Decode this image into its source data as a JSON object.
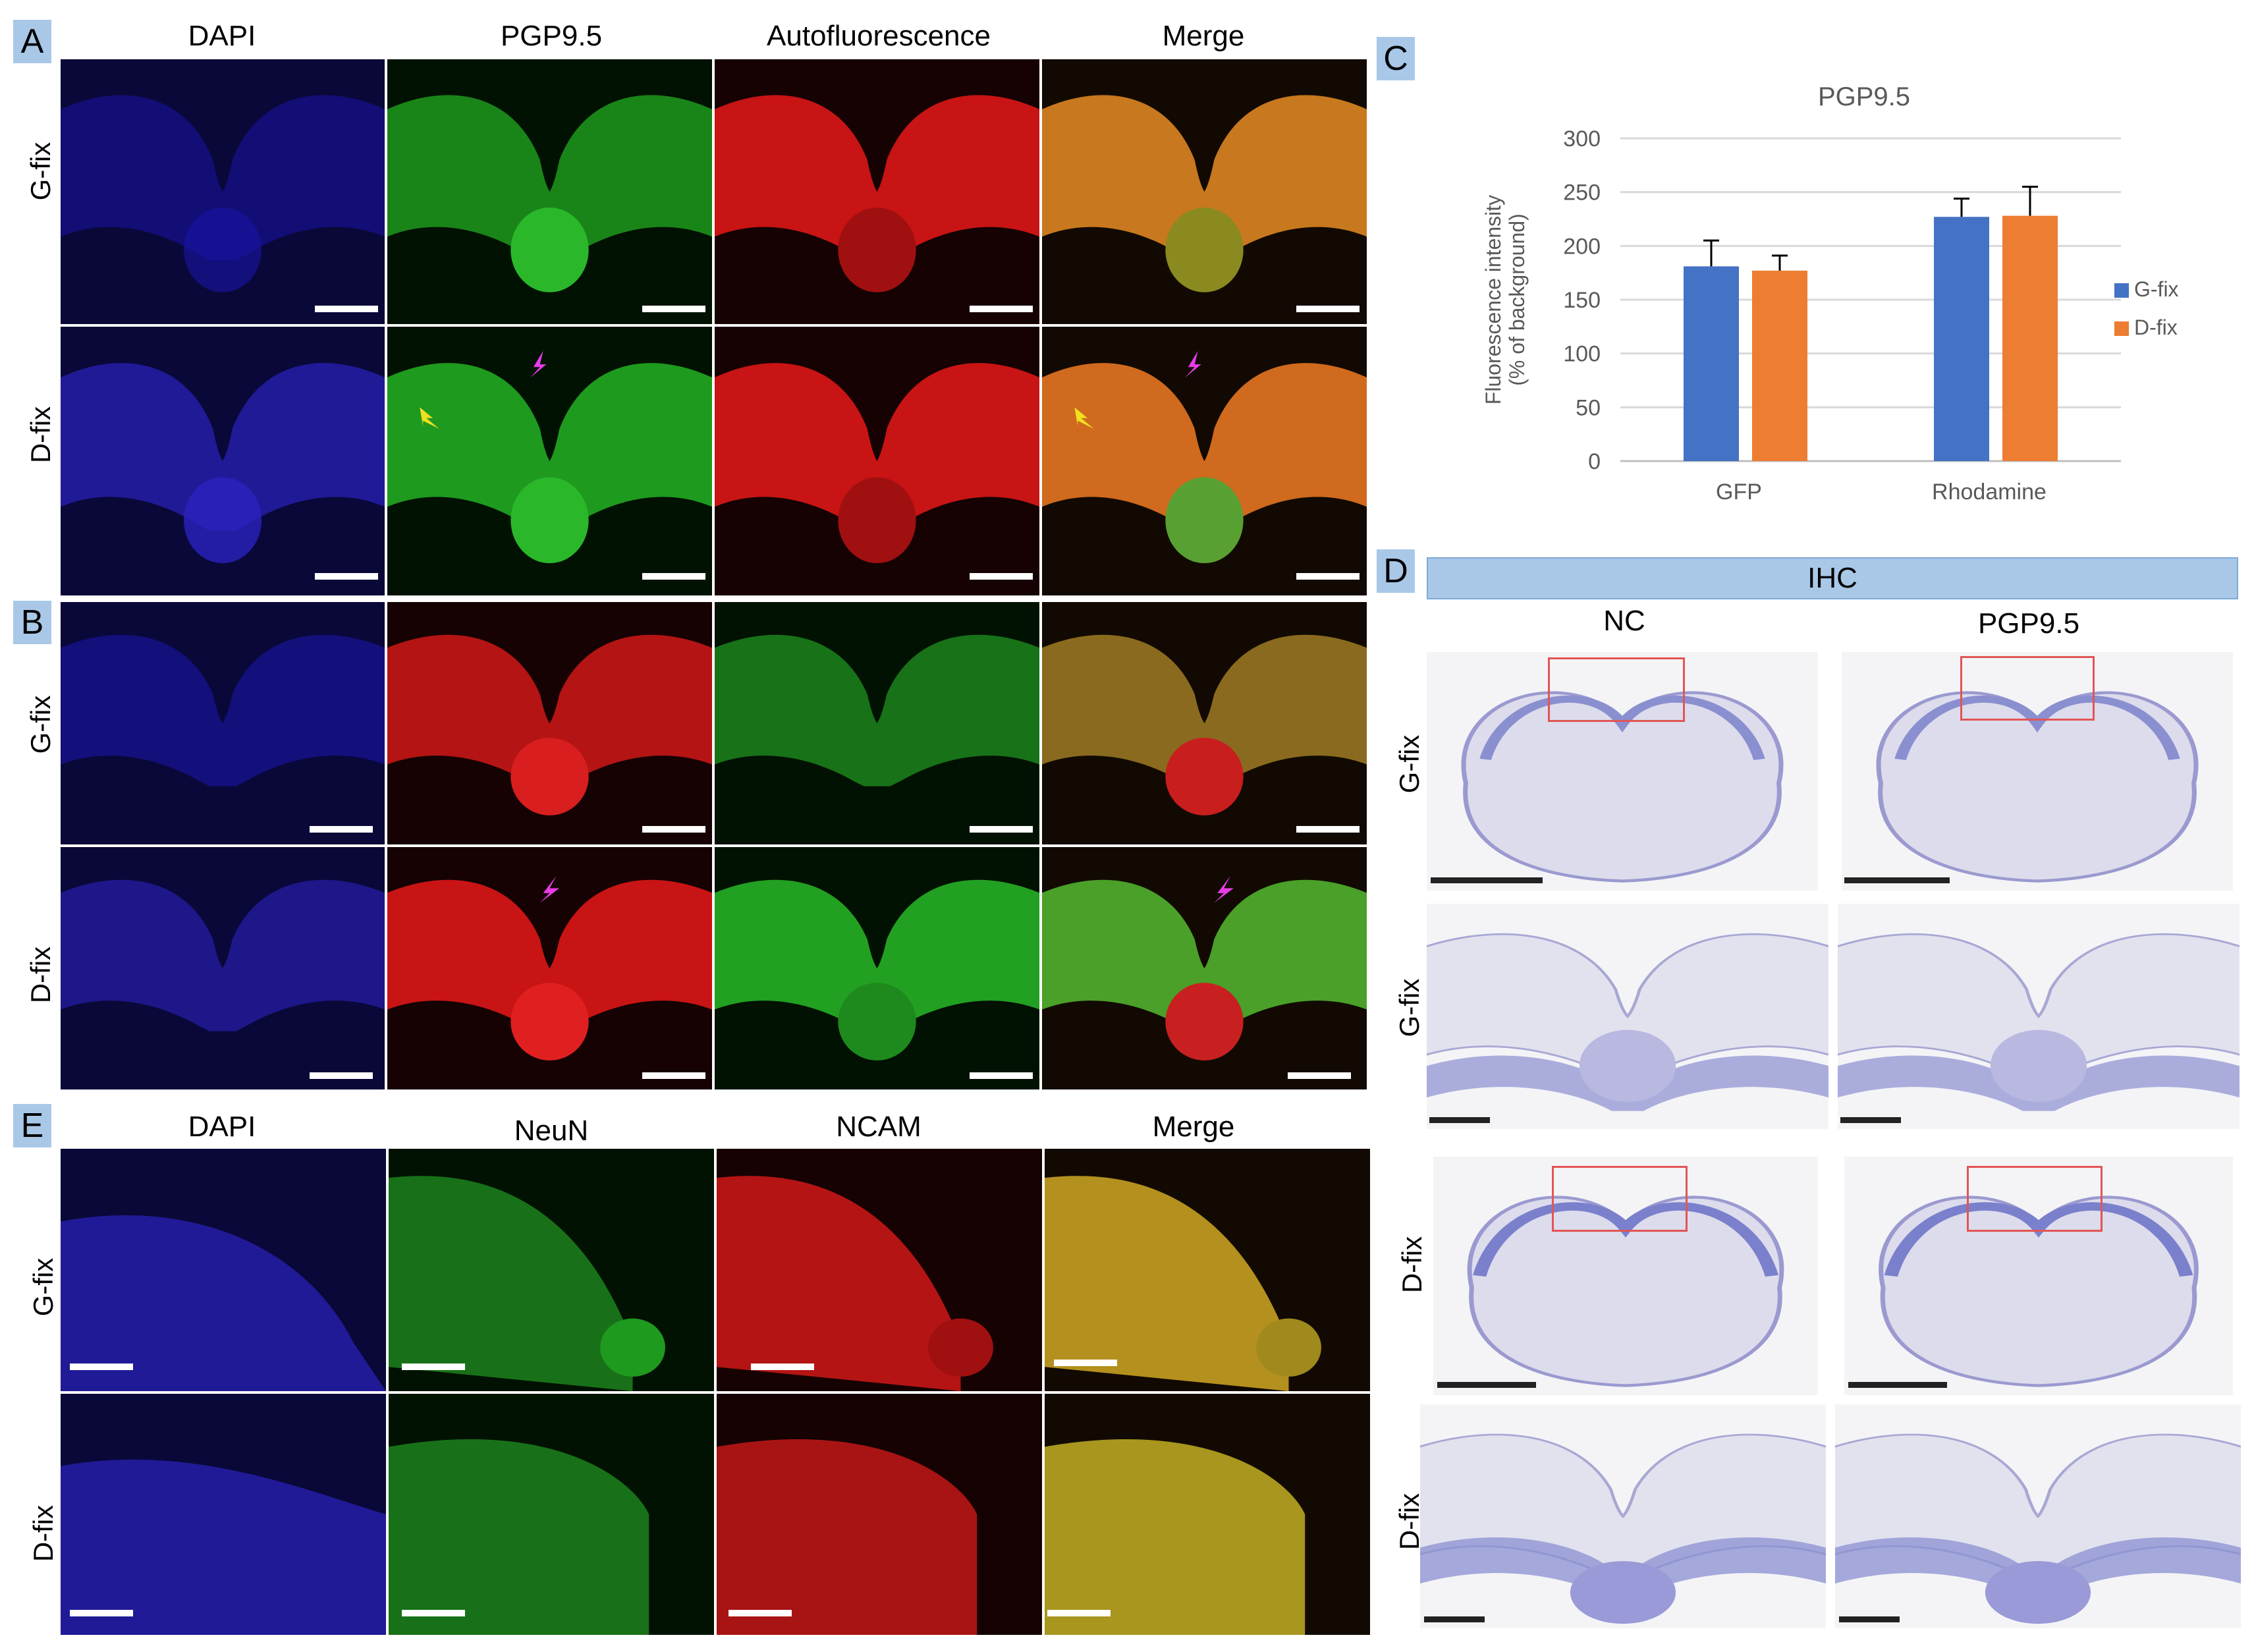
{
  "panel_labels": {
    "A": "A",
    "B": "B",
    "C": "C",
    "D": "D",
    "E": "E"
  },
  "section_A": {
    "columns": [
      "DAPI",
      "PGP9.5",
      "Autofluorescence",
      "Merge"
    ],
    "rows": [
      "G-fix",
      "D-fix"
    ]
  },
  "section_B": {
    "rows": [
      "G-fix",
      "D-fix"
    ]
  },
  "section_E": {
    "columns": [
      "DAPI",
      "NeuN",
      "NCAM",
      "Merge"
    ],
    "rows": [
      "G-fix",
      "D-fix"
    ]
  },
  "section_D": {
    "banner": "IHC",
    "columns": [
      "NC",
      "PGP9.5"
    ],
    "rows": [
      "G-fix",
      "G-fix",
      "D-fix",
      "D-fix"
    ]
  },
  "chart_data": {
    "type": "bar",
    "title": "PGP9.5",
    "ylabel_line1": "Fluorescence intensity",
    "ylabel_line2": "(% of background)",
    "xlabel": "",
    "ylim": [
      0,
      300
    ],
    "yticks": [
      0,
      50,
      100,
      150,
      200,
      250,
      300
    ],
    "categories": [
      "GFP",
      "Rhodamine"
    ],
    "series": [
      {
        "name": "G-fix",
        "color": "#4472c4",
        "values": [
          181,
          227
        ],
        "errors": [
          24,
          17
        ]
      },
      {
        "name": "D-fix",
        "color": "#ed7d31",
        "values": [
          177,
          228
        ],
        "errors": [
          14,
          27
        ]
      }
    ],
    "legend_position": "right",
    "grid": true
  },
  "colors": {
    "label_box": "#a9c8e8",
    "dapi": "#1a14a8",
    "green": "#1e9a1e",
    "red": "#c81414",
    "merge_orange": "#c8781e",
    "merge_yellow": "#b4a01e",
    "ihc_stain": "#8a8fd0",
    "magenta_arrow": "#e83ce8",
    "yellow_arrow": "#f0e020"
  }
}
